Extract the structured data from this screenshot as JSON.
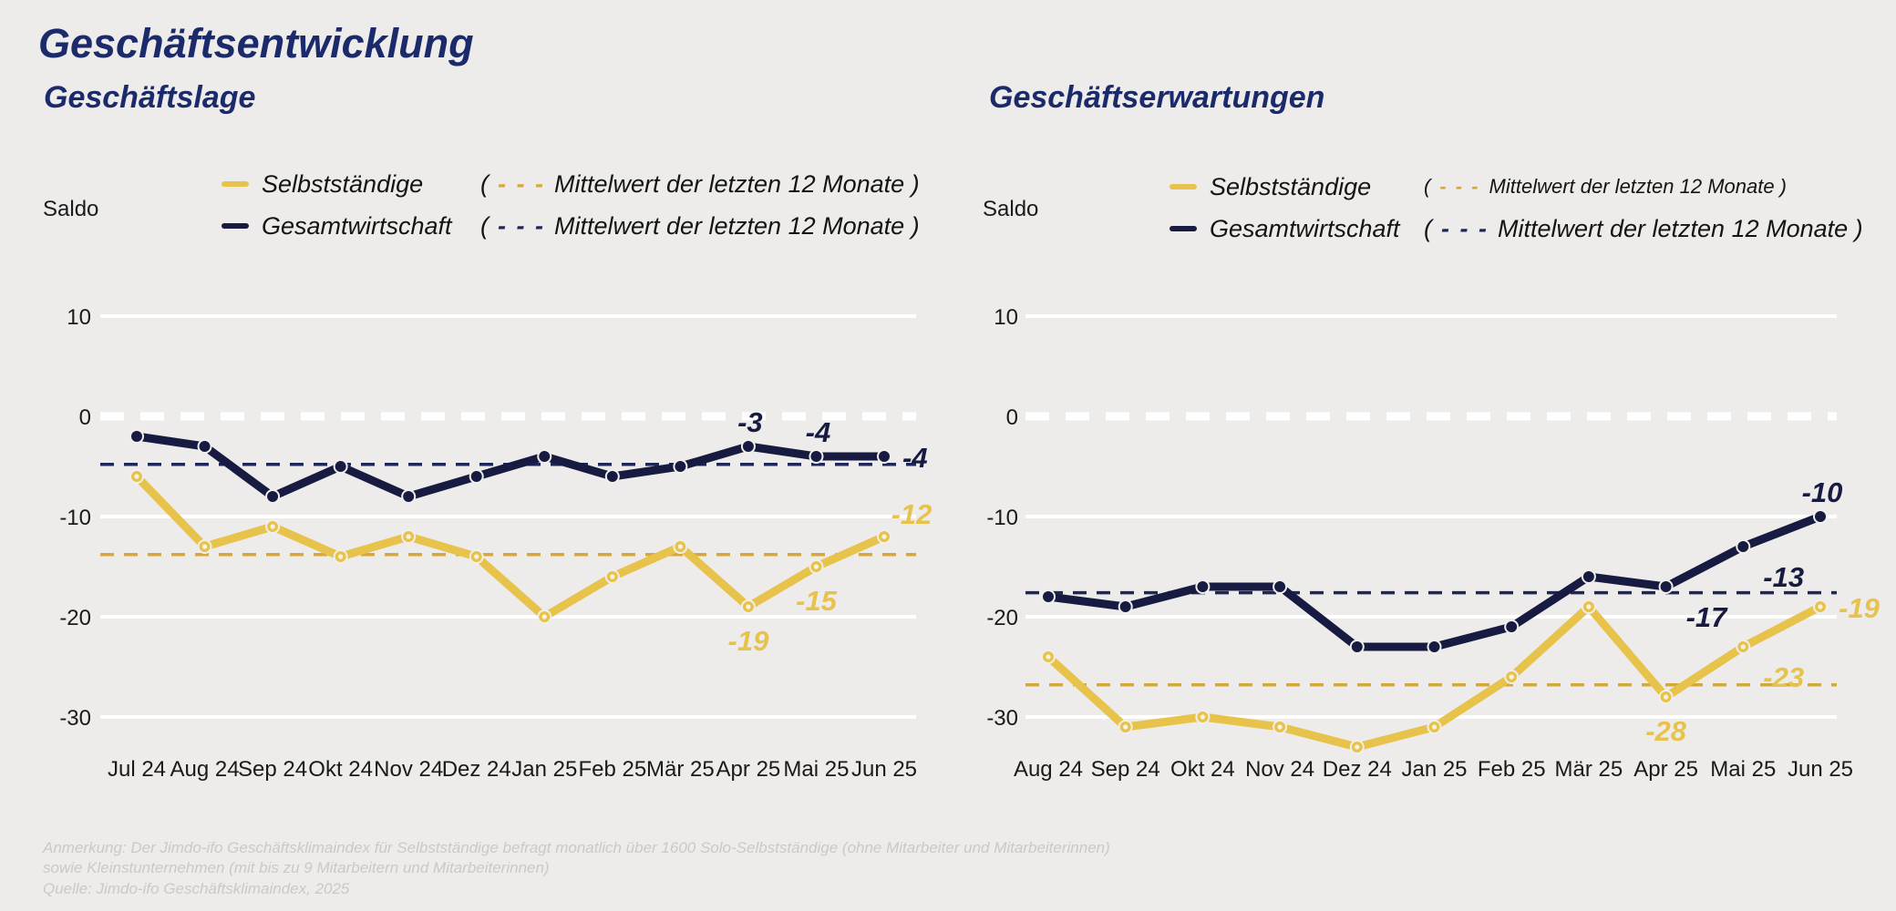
{
  "page": {
    "title": "Geschäftsentwicklung",
    "footnote_line1": "Anmerkung: Der Jimdo-ifo Geschäftsklimaindex für Selbstständige befragt monatlich über 1600 Solo-Selbstständige (ohne Mitarbeiter und Mitarbeiterinnen)",
    "footnote_line2": "sowie Kleinstunternehmen (mit bis zu 9 Mitarbeitern und Mitarbeiterinnen)",
    "source": "Quelle: Jimdo-ifo Geschäftsklimaindex, 2025"
  },
  "colors": {
    "background": "#edecea",
    "title_navy": "#1b2a6b",
    "selbststaendige": "#e7c34c",
    "gesamtwirtschaft": "#171b42",
    "mean_selbststaendige": "#d8a73c",
    "mean_gesamtwirtschaft": "#1e2757",
    "grid_white": "#ffffff",
    "axis_text": "#1a1a1a",
    "footer_gray": "#c9c9c9"
  },
  "legend": {
    "series1_label": "Selbstständige",
    "series2_label": "Gesamtwirtschaft",
    "mean_open": "(",
    "mean_dashes": "- - -",
    "mean_text": "Mittelwert der letzten 12 Monate )"
  },
  "chart_data": [
    {
      "type": "line",
      "title": "Geschäftslage",
      "ylabel": "Saldo",
      "xlabel": "",
      "ylim": [
        -38,
        14
      ],
      "yticks": [
        10,
        0,
        -10,
        -20,
        -30
      ],
      "grid": true,
      "legend_position": "top",
      "categories": [
        "Jul 24",
        "Aug 24",
        "Sep 24",
        "Okt 24",
        "Nov 24",
        "Dez 24",
        "Jan 25",
        "Feb 25",
        "Mär 25",
        "Apr 25",
        "Mai 25",
        "Jun 25"
      ],
      "series": [
        {
          "name": "Selbstständige",
          "key": "selbststaendige",
          "values": [
            -6,
            -13,
            -11,
            -14,
            -12,
            -14,
            -20,
            -16,
            -13,
            -19,
            -15,
            -12
          ],
          "mean_last_12": -13.8
        },
        {
          "name": "Gesamtwirtschaft",
          "key": "gesamtwirtschaft",
          "values": [
            -2,
            -3,
            -8,
            -5,
            -8,
            -6,
            -4,
            -6,
            -5,
            -3,
            -4,
            -4
          ],
          "mean_last_12": -4.8
        }
      ],
      "value_labels": [
        {
          "series": "gesamtwirtschaft",
          "category": "Apr 25",
          "text": "-3",
          "pos": "above"
        },
        {
          "series": "gesamtwirtschaft",
          "category": "Mai 25",
          "text": "-4",
          "pos": "above"
        },
        {
          "series": "gesamtwirtschaft",
          "category": "Jun 25",
          "text": "-4",
          "pos": "right"
        },
        {
          "series": "selbststaendige",
          "category": "Apr 25",
          "text": "-19",
          "pos": "below"
        },
        {
          "series": "selbststaendige",
          "category": "Mai 25",
          "text": "-15",
          "pos": "below"
        },
        {
          "series": "selbststaendige",
          "category": "Jun 25",
          "text": "-12",
          "pos": "above-right"
        }
      ]
    },
    {
      "type": "line",
      "title": "Geschäftserwartungen",
      "ylabel": "Saldo",
      "xlabel": "",
      "ylim": [
        -38,
        14
      ],
      "yticks": [
        10,
        0,
        -10,
        -20,
        -30
      ],
      "grid": true,
      "legend_position": "top",
      "categories": [
        "Aug 24",
        "Sep 24",
        "Okt 24",
        "Nov 24",
        "Dez 24",
        "Jan 25",
        "Feb 25",
        "Mär 25",
        "Apr 25",
        "Mai 25",
        "Jun 25"
      ],
      "series": [
        {
          "name": "Selbstständige",
          "key": "selbststaendige",
          "values": [
            -24,
            -31,
            -30,
            -31,
            -33,
            -31,
            -26,
            -19,
            -28,
            -23,
            -19
          ],
          "mean_last_12": -26.8
        },
        {
          "name": "Gesamtwirtschaft",
          "key": "gesamtwirtschaft",
          "values": [
            -18,
            -19,
            -17,
            -17,
            -23,
            -23,
            -21,
            -16,
            -17,
            -13,
            -10
          ],
          "mean_last_12": -17.6
        }
      ],
      "value_labels": [
        {
          "series": "gesamtwirtschaft",
          "category": "Apr 25",
          "text": "-17",
          "pos": "below-right"
        },
        {
          "series": "gesamtwirtschaft",
          "category": "Mai 25",
          "text": "-13",
          "pos": "below-right"
        },
        {
          "series": "gesamtwirtschaft",
          "category": "Jun 25",
          "text": "-10",
          "pos": "above"
        },
        {
          "series": "selbststaendige",
          "category": "Apr 25",
          "text": "-28",
          "pos": "below"
        },
        {
          "series": "selbststaendige",
          "category": "Mai 25",
          "text": "-23",
          "pos": "below-right"
        },
        {
          "series": "selbststaendige",
          "category": "Jun 25",
          "text": "-19",
          "pos": "right"
        }
      ]
    }
  ]
}
